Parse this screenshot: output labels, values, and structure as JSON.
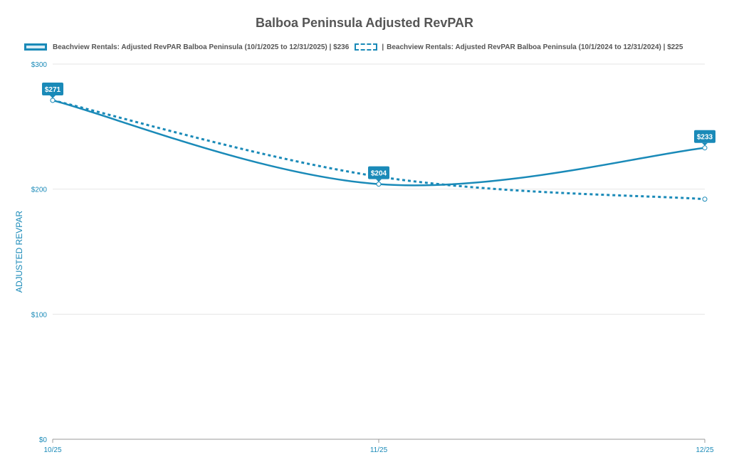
{
  "chart_data": {
    "type": "line",
    "title": "Balboa Peninsula Adjusted RevPAR",
    "ylabel": "ADJUSTED REVPAR",
    "xlabel": "",
    "categories": [
      "10/25",
      "11/25",
      "12/25"
    ],
    "ylim": [
      0,
      300
    ],
    "yticks": [
      0,
      100,
      200,
      300
    ],
    "ytick_labels": [
      "$0",
      "$100",
      "$200",
      "$300"
    ],
    "grid": true,
    "legend_position": "top",
    "series": [
      {
        "name": "Beachview Rentals: Adjusted RevPAR Balboa Peninsula  (10/1/2025 to 12/31/2025) | $236",
        "style": "solid",
        "color": "#1a8ab8",
        "values": [
          271,
          204,
          233
        ],
        "data_labels": [
          "$271",
          "$204",
          "$233"
        ]
      },
      {
        "name": "Beachview Rentals: Adjusted RevPAR Balboa Peninsula  (10/1/2024 to 12/31/2024) | $225",
        "style": "dashed",
        "color": "#1a8ab8",
        "values": [
          271,
          210,
          192
        ]
      }
    ]
  }
}
